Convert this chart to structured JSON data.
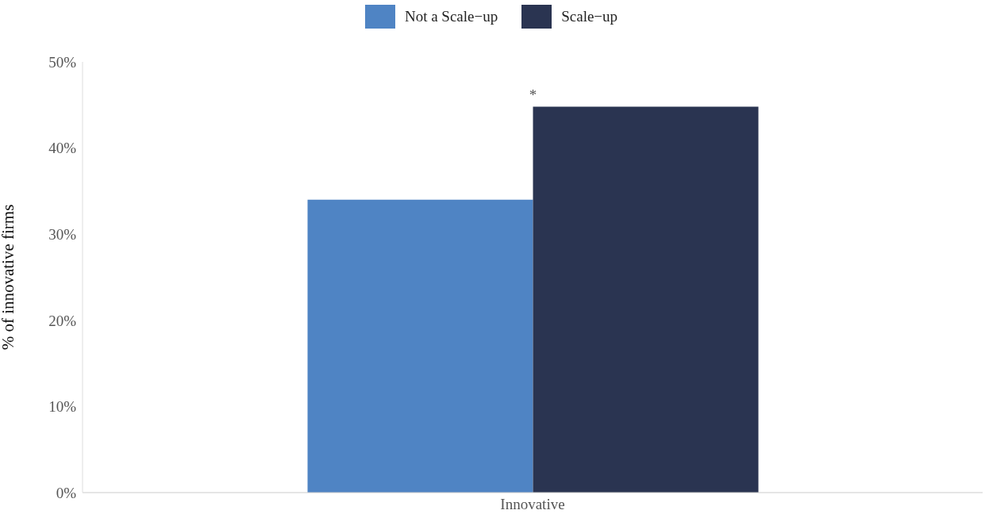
{
  "chart_data": {
    "type": "bar",
    "categories": [
      "Innovative"
    ],
    "series": [
      {
        "name": "Not a Scale−up",
        "color": "#4f84c4",
        "values": [
          34
        ]
      },
      {
        "name": "Scale−up",
        "color": "#2a3451",
        "values": [
          44.8
        ]
      }
    ],
    "ylabel": "% of innovative firms",
    "ylim": [
      0,
      50
    ],
    "yticks": [
      {
        "value": 0,
        "label": "0%"
      },
      {
        "value": 10,
        "label": "10%"
      },
      {
        "value": 20,
        "label": "20%"
      },
      {
        "value": 30,
        "label": "30%"
      },
      {
        "value": 40,
        "label": "40%"
      },
      {
        "value": 50,
        "label": "50%"
      }
    ],
    "annotations": [
      {
        "text": "*",
        "x": "Innovative",
        "y": 44.8
      }
    ],
    "grid": false,
    "legend": "top"
  }
}
